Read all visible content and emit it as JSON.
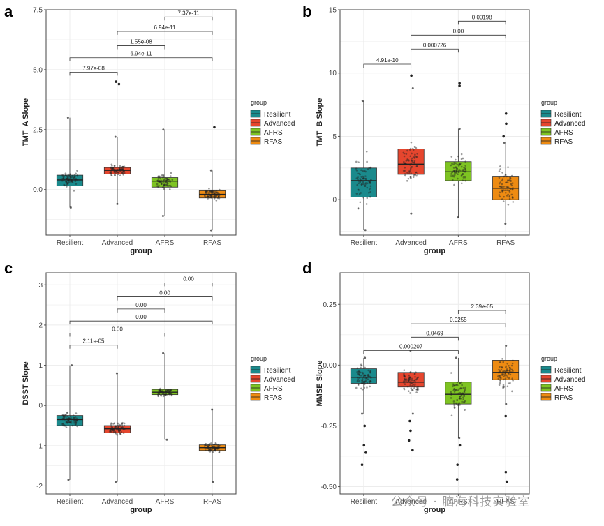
{
  "colors": {
    "Resilient": "#1a8a8c",
    "Advanced": "#e6462e",
    "AFRS": "#7ec422",
    "RFAS": "#ee8b12",
    "grid": "#ececec",
    "frame": "#444444",
    "dot": "#222222"
  },
  "watermark": "公众号 · 脑海科技实验室",
  "chart_data": [
    {
      "type": "box",
      "panel": "a",
      "ylabel": "TMT_A Slope",
      "xlabel": "group",
      "ylim": [
        -1.9,
        7.5
      ],
      "yticks": [
        0.0,
        2.5,
        5.0,
        7.5
      ],
      "ytick_labels": [
        "0.0",
        "2.5",
        "5.0",
        "7.5"
      ],
      "categories": [
        "Resilient",
        "Advanced",
        "AFRS",
        "RFAS"
      ],
      "boxes": [
        {
          "q1": 0.15,
          "median": 0.4,
          "q3": 0.6,
          "whisker_low": -0.75,
          "whisker_high": 3.0
        },
        {
          "q1": 0.65,
          "median": 0.8,
          "q3": 0.92,
          "whisker_low": -0.6,
          "whisker_high": 2.2
        },
        {
          "q1": 0.1,
          "median": 0.35,
          "q3": 0.5,
          "whisker_low": -1.1,
          "whisker_high": 2.5
        },
        {
          "q1": -0.35,
          "median": -0.2,
          "q3": -0.05,
          "whisker_low": -1.7,
          "whisker_high": 0.8
        }
      ],
      "outliers": [
        {
          "group": 1,
          "values": [
            4.4,
            4.5
          ]
        },
        {
          "group": 3,
          "values": [
            2.6
          ]
        }
      ],
      "comparisons": [
        {
          "from": 0,
          "to": 1,
          "y": 4.9,
          "label": "7.97e-08"
        },
        {
          "from": 0,
          "to": 3,
          "y": 5.5,
          "label": "6.94e-11"
        },
        {
          "from": 1,
          "to": 2,
          "y": 6.0,
          "label": "1.55e-08"
        },
        {
          "from": 1,
          "to": 3,
          "y": 6.6,
          "label": "6.94e-11"
        },
        {
          "from": 2,
          "to": 3,
          "y": 7.2,
          "label": "7.37e-11"
        }
      ],
      "legend_title": "group",
      "legend": [
        "Resilient",
        "Advanced",
        "AFRS",
        "RFAS"
      ]
    },
    {
      "type": "box",
      "panel": "b",
      "ylabel": "TMT_B Slope",
      "xlabel": "group",
      "ylim": [
        -2.8,
        15
      ],
      "yticks": [
        0,
        5,
        10,
        15
      ],
      "ytick_labels": [
        "0",
        "5",
        "10",
        "15"
      ],
      "categories": [
        "Resilient",
        "Advanced",
        "AFRS",
        "RFAS"
      ],
      "boxes": [
        {
          "q1": 0.2,
          "median": 1.5,
          "q3": 2.5,
          "whisker_low": -2.4,
          "whisker_high": 7.8
        },
        {
          "q1": 2.0,
          "median": 2.8,
          "q3": 4.0,
          "whisker_low": -1.1,
          "whisker_high": 8.8
        },
        {
          "q1": 1.5,
          "median": 2.2,
          "q3": 3.0,
          "whisker_low": -1.4,
          "whisker_high": 5.6
        },
        {
          "q1": 0.0,
          "median": 0.9,
          "q3": 1.8,
          "whisker_low": -1.9,
          "whisker_high": 4.5
        }
      ],
      "outliers": [
        {
          "group": 1,
          "values": [
            9.8
          ]
        },
        {
          "group": 2,
          "values": [
            9.2,
            9.0
          ]
        },
        {
          "group": 3,
          "values": [
            6.8,
            6.0,
            5.0
          ]
        }
      ],
      "comparisons": [
        {
          "from": 0,
          "to": 1,
          "y": 10.7,
          "label": "4.91e-10"
        },
        {
          "from": 1,
          "to": 2,
          "y": 11.9,
          "label": "0.000726"
        },
        {
          "from": 1,
          "to": 3,
          "y": 13.0,
          "label": "0.00"
        },
        {
          "from": 2,
          "to": 3,
          "y": 14.1,
          "label": "0.00198"
        }
      ],
      "legend_title": "group",
      "legend": [
        "Resilient",
        "Advanced",
        "AFRS",
        "RFAS"
      ]
    },
    {
      "type": "box",
      "panel": "c",
      "ylabel": "DSST Slope",
      "xlabel": "group",
      "ylim": [
        -2.2,
        3.3
      ],
      "yticks": [
        -2,
        -1,
        0,
        1,
        2,
        3
      ],
      "ytick_labels": [
        "-2",
        "-1",
        "0",
        "1",
        "2",
        "3"
      ],
      "categories": [
        "Resilient",
        "Advanced",
        "AFRS",
        "RFAS"
      ],
      "boxes": [
        {
          "q1": -0.5,
          "median": -0.35,
          "q3": -0.25,
          "whisker_low": -1.85,
          "whisker_high": 1.0
        },
        {
          "q1": -0.68,
          "median": -0.58,
          "q3": -0.5,
          "whisker_low": -1.9,
          "whisker_high": 0.8
        },
        {
          "q1": 0.27,
          "median": 0.33,
          "q3": 0.4,
          "whisker_low": -0.85,
          "whisker_high": 1.3
        },
        {
          "q1": -1.12,
          "median": -1.05,
          "q3": -0.98,
          "whisker_low": -1.9,
          "whisker_high": -0.1
        }
      ],
      "outliers": [],
      "comparisons": [
        {
          "from": 0,
          "to": 1,
          "y": 1.5,
          "label": "2.11e-05"
        },
        {
          "from": 0,
          "to": 2,
          "y": 1.8,
          "label": "0.00"
        },
        {
          "from": 0,
          "to": 3,
          "y": 2.1,
          "label": "0.00"
        },
        {
          "from": 1,
          "to": 2,
          "y": 2.4,
          "label": "0.00"
        },
        {
          "from": 1,
          "to": 3,
          "y": 2.7,
          "label": "0.00"
        },
        {
          "from": 2,
          "to": 3,
          "y": 3.05,
          "label": "0.00"
        }
      ],
      "legend_title": "group",
      "legend": [
        "Resilient",
        "Advanced",
        "AFRS",
        "RFAS"
      ]
    },
    {
      "type": "box",
      "panel": "d",
      "ylabel": "MMSE Slope",
      "xlabel": "group",
      "ylim": [
        -0.53,
        0.38
      ],
      "yticks": [
        -0.5,
        -0.25,
        0.0,
        0.25
      ],
      "ytick_labels": [
        "-0.50",
        "-0.25",
        "0.00",
        "0.25"
      ],
      "categories": [
        "Resilient",
        "Advanced",
        "AFRS",
        "RFAS"
      ],
      "boxes": [
        {
          "q1": -0.075,
          "median": -0.05,
          "q3": -0.015,
          "whisker_low": -0.2,
          "whisker_high": 0.03
        },
        {
          "q1": -0.09,
          "median": -0.07,
          "q3": -0.03,
          "whisker_low": -0.2,
          "whisker_high": 0.06
        },
        {
          "q1": -0.16,
          "median": -0.12,
          "q3": -0.07,
          "whisker_low": -0.3,
          "whisker_high": 0.03
        },
        {
          "q1": -0.06,
          "median": -0.03,
          "q3": 0.02,
          "whisker_low": -0.16,
          "whisker_high": 0.08
        }
      ],
      "outliers": [
        {
          "group": 0,
          "values": [
            -0.25,
            -0.33,
            -0.36,
            -0.41
          ]
        },
        {
          "group": 1,
          "values": [
            -0.23,
            -0.27,
            -0.31,
            -0.35
          ]
        },
        {
          "group": 2,
          "values": [
            -0.33,
            -0.41,
            -0.47
          ]
        },
        {
          "group": 3,
          "values": [
            -0.21,
            -0.44,
            -0.48
          ]
        }
      ],
      "comparisons": [
        {
          "from": 0,
          "to": 2,
          "y": 0.06,
          "label": "0.000207"
        },
        {
          "from": 1,
          "to": 2,
          "y": 0.115,
          "label": "0.0469"
        },
        {
          "from": 1,
          "to": 3,
          "y": 0.17,
          "label": "0.0255"
        },
        {
          "from": 2,
          "to": 3,
          "y": 0.225,
          "label": "2.39e-05"
        }
      ],
      "legend_title": "group",
      "legend": [
        "Resilient",
        "Advanced",
        "AFRS",
        "RFAS"
      ]
    }
  ]
}
